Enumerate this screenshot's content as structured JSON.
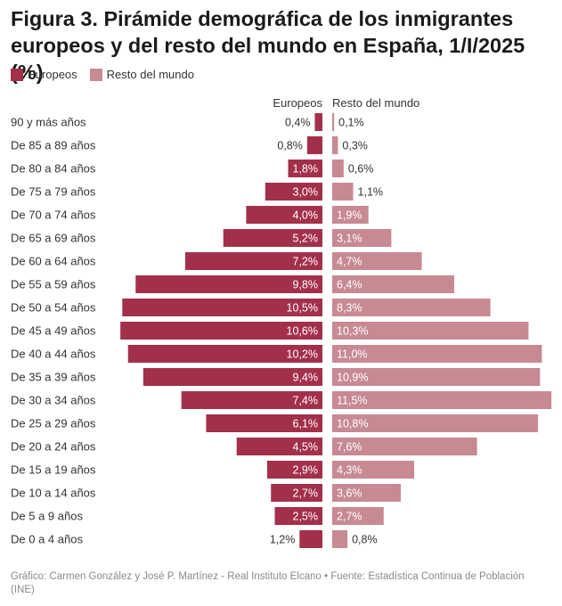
{
  "title": "Figura 3. Pirámide demográfica de los inmigrantes europeos y del resto del mundo en España, 1/I/2025 (%)",
  "legend": [
    {
      "label": "Europeos",
      "color": "#a3304a"
    },
    {
      "label": "Resto del mundo",
      "color": "#c78a93"
    }
  ],
  "column_headers": {
    "left": "Europeos",
    "right": "Resto del mundo"
  },
  "footer": "Gráfico: Carmen González y José P. Martínez - Real Instituto Elcano • Fuente: Estadística Continua de Población (INE)",
  "chart_data": {
    "type": "bar",
    "orientation": "horizontal-population-pyramid",
    "title": "Figura 3. Pirámide demográfica de los inmigrantes europeos y del resto del mundo en España, 1/I/2025 (%)",
    "unit": "%",
    "categories": [
      "90 y más años",
      "De 85 a 89 años",
      "De 80 a 84 años",
      "De 75 a 79 años",
      "De 70 a 74 años",
      "De 65 a 69 años",
      "De 60 a 64 años",
      "De 55 a 59 años",
      "De 50 a 54 años",
      "De 45 a 49 años",
      "De 40 a 44 años",
      "De 35 a 39 años",
      "De 30 a 34 años",
      "De 25 a 29 años",
      "De 20 a 24 años",
      "De 15 a 19 años",
      "De 10 a 14 años",
      "De 5 a 9 años",
      "De 0 a 4 años"
    ],
    "series": [
      {
        "name": "Europeos",
        "color": "#a3304a",
        "values": [
          0.4,
          0.8,
          1.8,
          3.0,
          4.0,
          5.2,
          7.2,
          9.8,
          10.5,
          10.6,
          10.2,
          9.4,
          7.4,
          6.1,
          4.5,
          2.9,
          2.7,
          2.5,
          1.2
        ],
        "labels": [
          "0,4%",
          "0,8%",
          "1,8%",
          "3,0%",
          "4,0%",
          "5,2%",
          "7,2%",
          "9,8%",
          "10,5%",
          "10,6%",
          "10,2%",
          "9,4%",
          "7,4%",
          "6,1%",
          "4,5%",
          "2,9%",
          "2,7%",
          "2,5%",
          "1,2%"
        ]
      },
      {
        "name": "Resto del mundo",
        "color": "#c78a93",
        "values": [
          0.1,
          0.3,
          0.6,
          1.1,
          1.9,
          3.1,
          4.7,
          6.4,
          8.3,
          10.3,
          11.0,
          10.9,
          11.5,
          10.8,
          7.6,
          4.3,
          3.6,
          2.7,
          0.8
        ],
        "labels": [
          "0,1%",
          "0,3%",
          "0,6%",
          "1,1%",
          "1,9%",
          "3,1%",
          "4,7%",
          "6,4%",
          "8,3%",
          "10,3%",
          "11,0%",
          "10,9%",
          "11,5%",
          "10,8%",
          "7,6%",
          "4,3%",
          "3,6%",
          "2,7%",
          "0,8%"
        ]
      }
    ],
    "grid": false,
    "legend_position": "top-left"
  }
}
